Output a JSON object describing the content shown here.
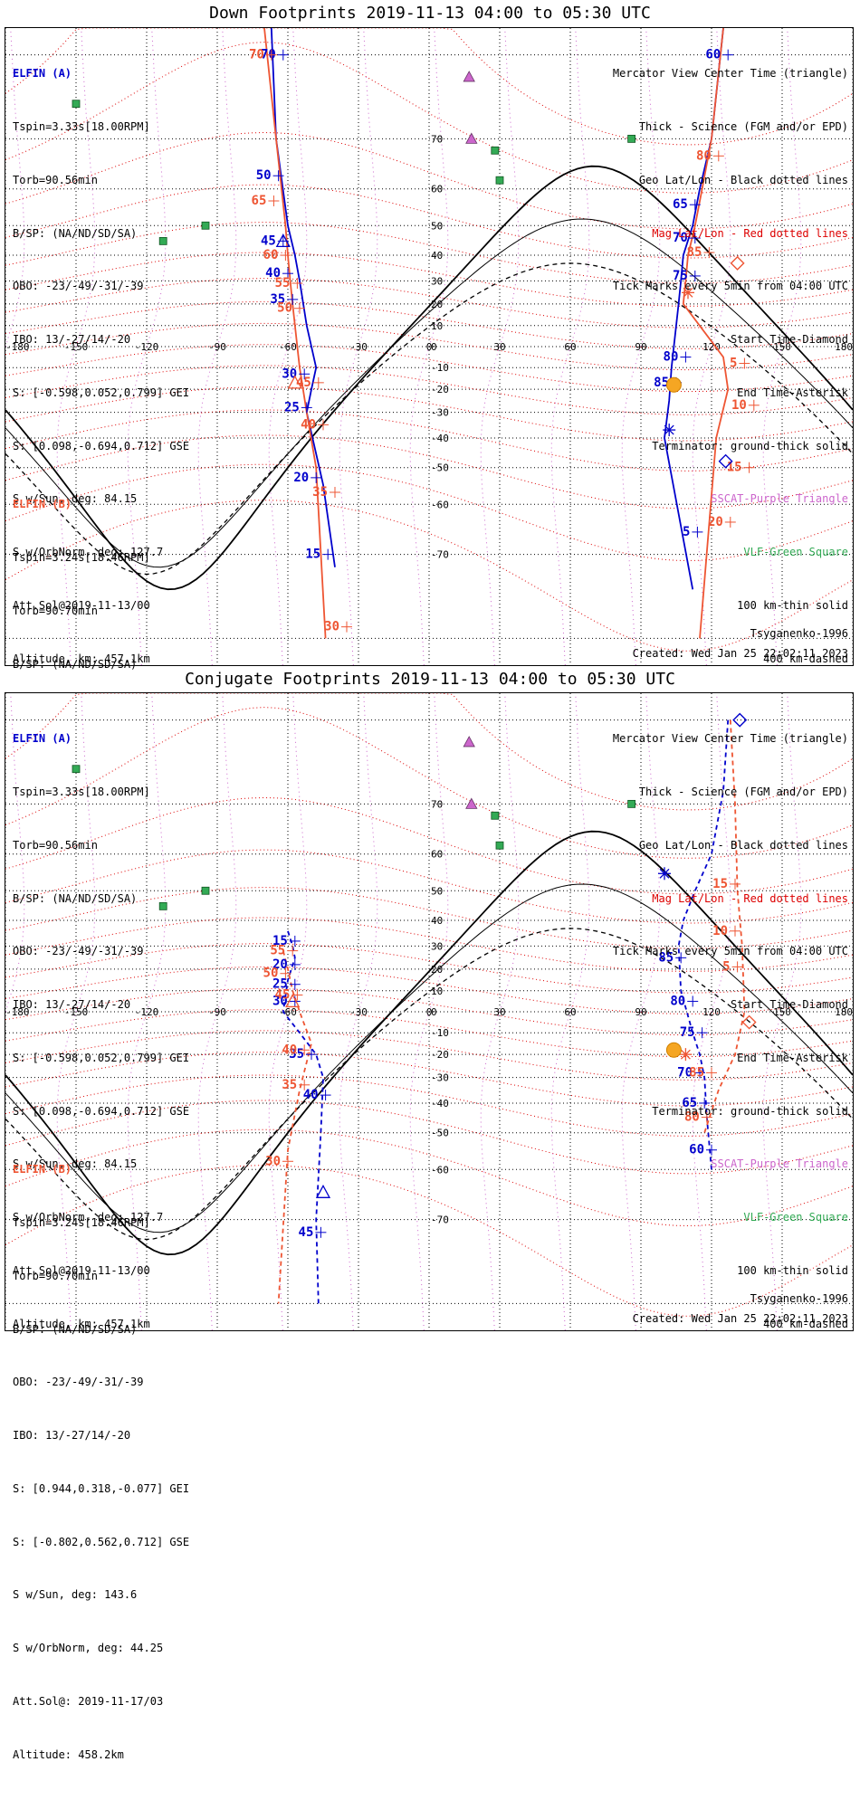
{
  "titles": {
    "down": "Down Footprints 2019-11-13 04:00 to 05:30 UTC",
    "conjugate": "Conjugate Footprints 2019-11-13 04:00 to 05:30 UTC"
  },
  "elfin_a": {
    "name": "ELFIN (A)",
    "lines": [
      "Tspin=3.33s[18.00RPM]",
      "Torb=90.56min",
      "B/SP: (NA/ND/SD/SA)",
      "OBO: -23/-49/-31/-39",
      "IBO: 13/-27/14/-20",
      "S: [-0.598,0.052,0.799] GEI",
      "S: [0.098,-0.694,0.712] GSE",
      "S w/Sun, deg: 84.15",
      "S w/OrbNorm, deg: 127.7",
      "Att.Sol@2019-11-13/00",
      "Altitude, km: 457.1km"
    ]
  },
  "elfin_b": {
    "name": "ELFIN (B)",
    "lines": [
      "Tspin=3.24s[18.46RPM]",
      "Torb=90.70min",
      "B/SP: (NA/ND/SD/SA)",
      "OBO: -23/-49/-31/-39",
      "IBO: 13/-27/14/-20",
      "S: [0.944,0.318,-0.077] GEI",
      "S: [-0.802,0.562,0.712] GSE",
      "S w/Sun, deg: 143.6",
      "S w/OrbNorm, deg: 44.25",
      "Att.Sol@: 2019-11-17/03",
      "Altitude: 458.2km"
    ]
  },
  "legend": {
    "mercator": "Mercator View Center Time (triangle)",
    "thick": "Thick - Science (FGM and/or EPD)",
    "geo": "Geo Lat/Lon - Black dotted lines",
    "mag": "Mag Lat/Lon - Red dotted lines",
    "ticks": "Tick Marks every 5min from 04:00 UTC",
    "start": "Start Time-Diamond",
    "end": "End Time-Asterisk",
    "terminator": "Terminator: ground-thick solid",
    "sscat": "SSCAT-Purple Triangle",
    "vlf": "VLF-Green Square",
    "km100": "100 km-thin solid",
    "km400": "400 km-dashed"
  },
  "model": "Tsyganenko-1996",
  "created": "Created: Wed Jan 25 22:02:11 2023",
  "axes": {
    "lon_labels": [
      "-180",
      "-150",
      "-120",
      "-90",
      "-60",
      "-30",
      "0",
      "30",
      "60",
      "90",
      "120",
      "150",
      "180"
    ],
    "lat_labels": [
      "70",
      "60",
      "50",
      "40",
      "30",
      "20",
      "10",
      "0",
      "-10",
      "-20",
      "-30",
      "-40",
      "-50",
      "-60",
      "-70"
    ],
    "lon_range": [
      -180,
      180
    ],
    "lat_range": [
      -82,
      82
    ]
  },
  "colors": {
    "elfin_a": "#0000cc",
    "elfin_b": "#ee5533",
    "mag_grid": "#dd0000",
    "geo_grid": "#000000",
    "sscat": "#cc66cc",
    "vlf": "#33aa55",
    "sun": "#f5a623"
  },
  "chart_data": {
    "type": "map",
    "down": {
      "track_a_west": [
        [
          -67,
          82
        ],
        [
          -65,
          70
        ],
        [
          -60,
          50
        ],
        [
          -57,
          40
        ],
        [
          -55,
          30
        ],
        [
          -52,
          10
        ],
        [
          -48,
          -10
        ],
        [
          -50,
          -20
        ],
        [
          -52,
          -30
        ],
        [
          -45,
          -55
        ],
        [
          -40,
          -72
        ]
      ],
      "track_b_west": [
        [
          -70,
          82
        ],
        [
          -65,
          70
        ],
        [
          -61,
          50
        ],
        [
          -60,
          40
        ],
        [
          -59,
          30
        ],
        [
          -58,
          20
        ],
        [
          -56,
          0
        ],
        [
          -55,
          -10
        ],
        [
          -52,
          -30
        ],
        [
          -48,
          -50
        ],
        [
          -44,
          -80
        ]
      ],
      "track_a_east": [
        [
          125,
          82
        ],
        [
          120,
          70
        ],
        [
          115,
          60
        ],
        [
          112,
          50
        ],
        [
          108,
          40
        ],
        [
          107,
          30
        ],
        [
          106,
          20
        ],
        [
          103,
          -10
        ],
        [
          102,
          -25
        ],
        [
          100,
          -40
        ],
        [
          112,
          -75
        ]
      ],
      "track_b_east": [
        [
          125,
          82
        ],
        [
          120,
          70
        ],
        [
          116,
          60
        ],
        [
          113,
          50
        ],
        [
          110,
          40
        ],
        [
          109,
          30
        ],
        [
          108,
          20
        ],
        [
          125,
          -5
        ],
        [
          127,
          -20
        ],
        [
          122,
          -40
        ],
        [
          115,
          -80
        ]
      ],
      "ticks_a": [
        {
          "label": "70",
          "lon": -62,
          "lat": 80
        },
        {
          "label": "50",
          "lon": -64,
          "lat": 63
        },
        {
          "label": "45",
          "lon": -62,
          "lat": 45
        },
        {
          "label": "40",
          "lon": -60,
          "lat": 33
        },
        {
          "label": "35",
          "lon": -58,
          "lat": 22
        },
        {
          "label": "30",
          "lon": -53,
          "lat": -13
        },
        {
          "label": "25",
          "lon": -52,
          "lat": -28
        },
        {
          "label": "20",
          "lon": -48,
          "lat": -53
        },
        {
          "label": "15",
          "lon": -43,
          "lat": -70
        },
        {
          "label": "60",
          "lon": 127,
          "lat": 80
        },
        {
          "label": "65",
          "lon": 113,
          "lat": 56
        },
        {
          "label": "70",
          "lon": 113,
          "lat": 46
        },
        {
          "label": "75",
          "lon": 113,
          "lat": 32
        },
        {
          "label": "80",
          "lon": 109,
          "lat": -5
        },
        {
          "label": "85",
          "lon": 105,
          "lat": -17
        },
        {
          "label": "5",
          "lon": 114,
          "lat": -66
        }
      ],
      "ticks_b": [
        {
          "label": "70",
          "lon": -67,
          "lat": 80
        },
        {
          "label": "65",
          "lon": -66,
          "lat": 57
        },
        {
          "label": "60",
          "lon": -61,
          "lat": 40
        },
        {
          "label": "55",
          "lon": -56,
          "lat": 29
        },
        {
          "label": "50",
          "lon": -55,
          "lat": 18
        },
        {
          "label": "45",
          "lon": -47,
          "lat": -17
        },
        {
          "label": "40",
          "lon": -45,
          "lat": -35
        },
        {
          "label": "35",
          "lon": -40,
          "lat": -57
        },
        {
          "label": "30",
          "lon": -35,
          "lat": -79
        },
        {
          "label": "80",
          "lon": 123,
          "lat": 67
        },
        {
          "label": "85",
          "lon": 119,
          "lat": 41
        },
        {
          "label": "5",
          "lon": 134,
          "lat": -8
        },
        {
          "label": "10",
          "lon": 138,
          "lat": -27
        },
        {
          "label": "15",
          "lon": 136,
          "lat": -50
        },
        {
          "label": "20",
          "lon": 128,
          "lat": -64
        }
      ],
      "start_a": [
        126,
        -48
      ],
      "start_b": [
        131,
        37
      ],
      "end_a": [
        102,
        -37
      ],
      "end_b": [
        110,
        25
      ],
      "center_a": [
        -62,
        45
      ],
      "center_b": [
        -57,
        -17
      ],
      "sun": [
        104,
        -18
      ]
    },
    "conjugate": {
      "track_a_west": [
        [
          -60,
          36
        ],
        [
          -58,
          30
        ],
        [
          -57,
          25
        ],
        [
          -60,
          15
        ],
        [
          -62,
          0
        ],
        [
          -55,
          -10
        ],
        [
          -48,
          -20
        ],
        [
          -45,
          -30
        ],
        [
          -46,
          -50
        ],
        [
          -48,
          -70
        ],
        [
          -47,
          -80
        ]
      ],
      "track_b_west": [
        [
          -62,
          28
        ],
        [
          -60,
          20
        ],
        [
          -58,
          10
        ],
        [
          -55,
          0
        ],
        [
          -50,
          -15
        ],
        [
          -55,
          -35
        ],
        [
          -60,
          -55
        ],
        [
          -64,
          -80
        ]
      ],
      "track_a_east": [
        [
          127,
          80
        ],
        [
          125,
          72
        ],
        [
          120,
          60
        ],
        [
          113,
          50
        ],
        [
          108,
          40
        ],
        [
          106,
          30
        ],
        [
          107,
          10
        ],
        [
          112,
          -10
        ],
        [
          115,
          -20
        ],
        [
          117,
          -30
        ],
        [
          118,
          -45
        ],
        [
          120,
          -60
        ]
      ],
      "track_b_east": [
        [
          128,
          80
        ],
        [
          130,
          70
        ],
        [
          131,
          50
        ],
        [
          133,
          30
        ],
        [
          134,
          0
        ],
        [
          130,
          -20
        ],
        [
          123,
          -35
        ],
        [
          117,
          -50
        ]
      ],
      "ticks_a": [
        {
          "label": "15",
          "lon": -57,
          "lat": 32
        },
        {
          "label": "20",
          "lon": -57,
          "lat": 22
        },
        {
          "label": "25",
          "lon": -57,
          "lat": 13
        },
        {
          "label": "30",
          "lon": -57,
          "lat": 5
        },
        {
          "label": "35",
          "lon": -50,
          "lat": -20
        },
        {
          "label": "40",
          "lon": -44,
          "lat": -37
        },
        {
          "label": "45",
          "lon": -46,
          "lat": -72
        },
        {
          "label": "60",
          "lon": 120,
          "lat": -55
        },
        {
          "label": "65",
          "lon": 117,
          "lat": -40
        },
        {
          "label": "70",
          "lon": 115,
          "lat": -28
        },
        {
          "label": "75",
          "lon": 116,
          "lat": -10
        },
        {
          "label": "80",
          "lon": 112,
          "lat": 5
        },
        {
          "label": "85",
          "lon": 107,
          "lat": 25
        }
      ],
      "ticks_b": [
        {
          "label": "55",
          "lon": -58,
          "lat": 28
        },
        {
          "label": "50",
          "lon": -61,
          "lat": 18
        },
        {
          "label": "45",
          "lon": -56,
          "lat": 8
        },
        {
          "label": "40",
          "lon": -53,
          "lat": -18
        },
        {
          "label": "35",
          "lon": -53,
          "lat": -33
        },
        {
          "label": "30",
          "lon": -60,
          "lat": -58
        },
        {
          "label": "85",
          "lon": 120,
          "lat": -28
        },
        {
          "label": "80",
          "lon": 118,
          "lat": -45
        },
        {
          "label": "15",
          "lon": 130,
          "lat": 52
        },
        {
          "label": "10",
          "lon": 130,
          "lat": 36
        },
        {
          "label": "5",
          "lon": 131,
          "lat": 21
        }
      ],
      "start_a": [
        132,
        80
      ],
      "start_b": [
        136,
        -5
      ],
      "end_a": [
        100,
        55
      ],
      "end_b": [
        109,
        -20
      ],
      "center_a": [
        -45,
        -65
      ],
      "center_b": [
        -58,
        5
      ],
      "sun": [
        104,
        -18
      ]
    },
    "sscat_sites": [
      [
        17,
        78
      ],
      [
        18,
        70
      ]
    ],
    "vlf_sites": [
      [
        28,
        68
      ],
      [
        -95,
        50
      ],
      [
        -113,
        45
      ],
      [
        -150,
        75
      ],
      [
        30,
        62
      ],
      [
        86,
        70
      ]
    ]
  }
}
